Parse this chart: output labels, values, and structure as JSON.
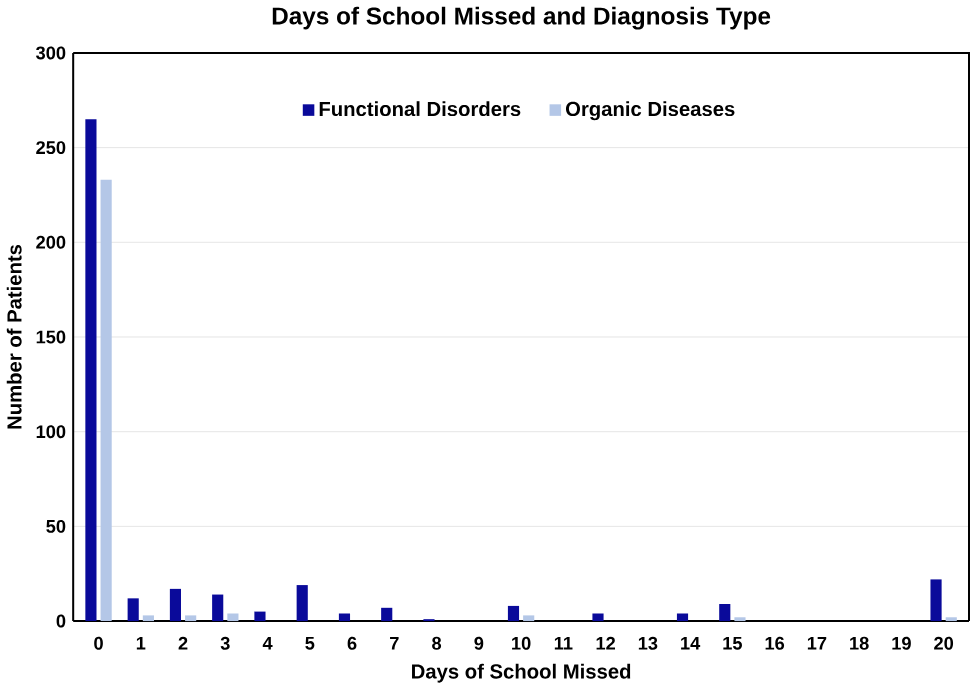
{
  "chart_data": {
    "type": "bar",
    "title": "Days of School Missed and Diagnosis Type",
    "xlabel": "Days of School Missed",
    "ylabel": "Number of Patients",
    "categories": [
      "0",
      "1",
      "2",
      "3",
      "4",
      "5",
      "6",
      "7",
      "8",
      "9",
      "10",
      "11",
      "12",
      "13",
      "14",
      "15",
      "16",
      "17",
      "18",
      "19",
      "20"
    ],
    "series": [
      {
        "name": "Functional Disorders",
        "color": "#0a0a9a",
        "values": [
          265,
          12,
          17,
          14,
          5,
          19,
          4,
          7,
          1,
          0,
          8,
          0,
          4,
          0,
          4,
          9,
          0,
          0,
          0,
          0,
          22
        ]
      },
      {
        "name": "Organic Diseases",
        "color": "#b4c7e7",
        "values": [
          233,
          3,
          3,
          4,
          0,
          null,
          0,
          null,
          null,
          0,
          3,
          0,
          null,
          0,
          0,
          2,
          0,
          0,
          0,
          0,
          2
        ]
      }
    ],
    "ylim": [
      0,
      300
    ],
    "yticks": [
      0,
      50,
      100,
      150,
      200,
      250,
      300
    ],
    "grid": "y",
    "legend": "top"
  }
}
